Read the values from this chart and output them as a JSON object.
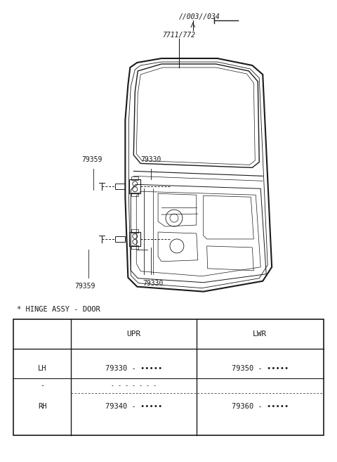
{
  "bg_color": "#ffffff",
  "part_ref_top": "//003//034",
  "part_ref_mid": "7711/772",
  "hinge_label": "* HINGE ASSY - DOOR",
  "table_headers": [
    "",
    "UPR",
    "LWR"
  ],
  "lh_upr": "79330 - •••••",
  "lh_lwr": "79350 - •••••",
  "rh_upr": "79340 - •••••",
  "rh_lwr": "79360 - •••••",
  "label_upr_79330": "79330",
  "label_upr_79359": "79359",
  "label_lwr_79330": "79330",
  "label_lwr_79359": "79359",
  "line_color": "#1a1a1a"
}
